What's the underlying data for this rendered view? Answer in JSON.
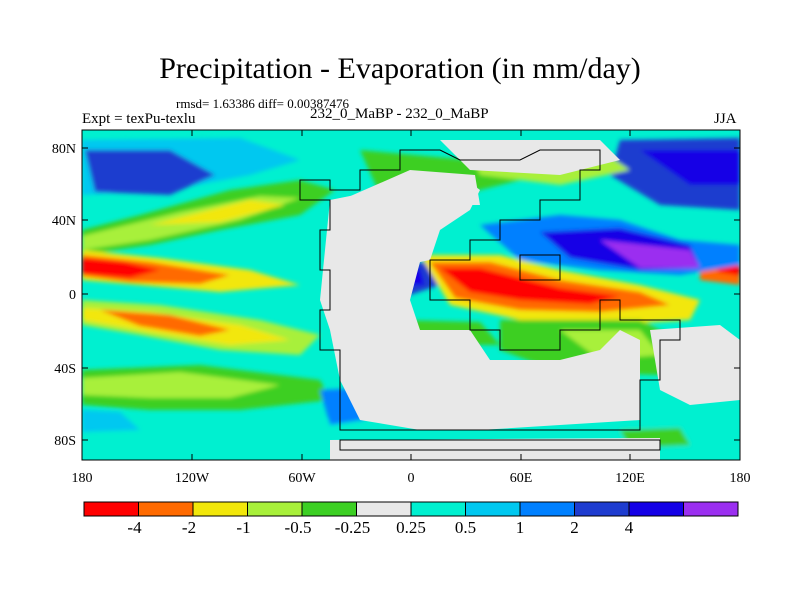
{
  "title": "Precipitation - Evaporation (in mm/day)",
  "stats": "rmsd= 1.63386 diff= 0.00387476",
  "left_label": "Expt = texPu-texlu",
  "center_label": "232_0_MaBP - 232_0_MaBP",
  "right_label": "JJA",
  "lat_ticks": [
    "80N",
    "40N",
    "0",
    "40S",
    "80S"
  ],
  "lon_ticks": [
    "180",
    "120W",
    "60W",
    "0",
    "60E",
    "120E",
    "180"
  ],
  "colorbar": {
    "colors": [
      "#ff0000",
      "#ff6a00",
      "#f2e70a",
      "#a8f03a",
      "#3ccf23",
      "#e8e8e8",
      "#00f0d0",
      "#00c8f0",
      "#0080ff",
      "#1e3ccf",
      "#1400e6",
      "#9b2ff0"
    ],
    "labels": [
      "-4",
      "-2",
      "-1",
      "-0.5",
      "-0.25",
      "0.25",
      "0.5",
      "1",
      "2",
      "4"
    ]
  }
}
